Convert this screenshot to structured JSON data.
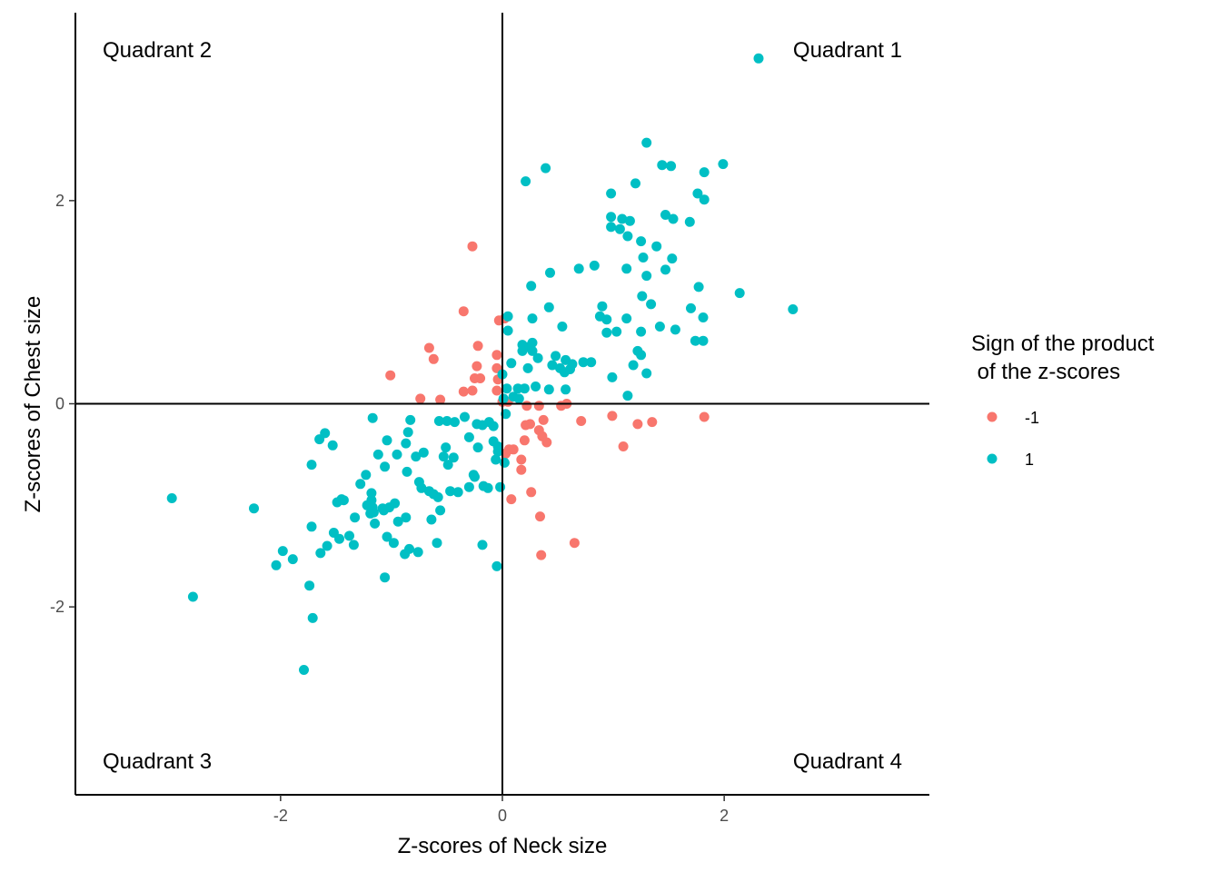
{
  "chart_data": {
    "type": "scatter",
    "xlabel": "Z-scores of Neck size",
    "ylabel": "Z-scores of Chest size",
    "xlim": [
      -3.85,
      3.85
    ],
    "ylim": [
      -3.85,
      3.85
    ],
    "x_ticks": [
      -2,
      0,
      2
    ],
    "y_ticks": [
      -2,
      0,
      2
    ],
    "x_tick_labels": [
      "-2",
      "0",
      "2"
    ],
    "y_tick_labels": [
      "-2",
      "0",
      "2"
    ],
    "grid": false,
    "reference_lines": {
      "x": 0,
      "y": 0
    },
    "quadrant_labels": [
      "Quadrant 1",
      "Quadrant 2",
      "Quadrant 3",
      "Quadrant 4"
    ],
    "legend": {
      "title_lines": [
        "Sign of the product",
        " of the z-scores"
      ],
      "placement": "right",
      "entries": [
        {
          "label": "-1",
          "color": "#F8766D"
        },
        {
          "label": "1",
          "color": "#00BFC4"
        }
      ]
    },
    "series": [
      {
        "name": "-1",
        "color": "#F8766D",
        "points": [
          [
            -0.27,
            1.55
          ],
          [
            -0.35,
            0.91
          ],
          [
            -0.03,
            0.82
          ],
          [
            0.02,
            0.84
          ],
          [
            -0.66,
            0.55
          ],
          [
            -0.62,
            0.44
          ],
          [
            -0.22,
            0.57
          ],
          [
            -0.05,
            0.48
          ],
          [
            -0.23,
            0.37
          ],
          [
            -0.05,
            0.35
          ],
          [
            -0.2,
            0.25
          ],
          [
            -0.25,
            0.25
          ],
          [
            -0.04,
            0.24
          ],
          [
            -1.01,
            0.28
          ],
          [
            -0.74,
            0.05
          ],
          [
            -0.56,
            0.04
          ],
          [
            -0.35,
            0.12
          ],
          [
            -0.27,
            0.13
          ],
          [
            -0.05,
            0.13
          ],
          [
            0.0,
            0.02
          ],
          [
            0.05,
            0.02
          ],
          [
            0.22,
            -0.02
          ],
          [
            0.33,
            -0.02
          ],
          [
            0.53,
            -0.02
          ],
          [
            0.58,
            0.0
          ],
          [
            0.37,
            -0.16
          ],
          [
            0.25,
            -0.2
          ],
          [
            0.21,
            -0.21
          ],
          [
            0.33,
            -0.26
          ],
          [
            0.36,
            -0.32
          ],
          [
            0.2,
            -0.36
          ],
          [
            0.4,
            -0.38
          ],
          [
            0.06,
            -0.45
          ],
          [
            0.1,
            -0.45
          ],
          [
            0.03,
            -0.49
          ],
          [
            0.17,
            -0.55
          ],
          [
            0.17,
            -0.65
          ],
          [
            0.26,
            -0.87
          ],
          [
            0.08,
            -0.94
          ],
          [
            0.34,
            -1.11
          ],
          [
            0.35,
            -1.49
          ],
          [
            0.65,
            -1.37
          ],
          [
            0.99,
            -0.12
          ],
          [
            1.22,
            -0.2
          ],
          [
            1.35,
            -0.18
          ],
          [
            1.82,
            -0.13
          ],
          [
            1.09,
            -0.42
          ],
          [
            0.71,
            -0.17
          ]
        ]
      },
      {
        "name": "1",
        "color": "#00BFC4",
        "points": [
          [
            2.31,
            3.4
          ],
          [
            1.3,
            2.57
          ],
          [
            0.39,
            2.32
          ],
          [
            0.21,
            2.19
          ],
          [
            1.44,
            2.35
          ],
          [
            1.52,
            2.34
          ],
          [
            1.99,
            2.36
          ],
          [
            1.82,
            2.28
          ],
          [
            1.2,
            2.17
          ],
          [
            0.98,
            2.07
          ],
          [
            1.76,
            2.07
          ],
          [
            1.82,
            2.01
          ],
          [
            0.98,
            1.84
          ],
          [
            1.08,
            1.82
          ],
          [
            1.15,
            1.8
          ],
          [
            1.47,
            1.86
          ],
          [
            1.54,
            1.82
          ],
          [
            1.69,
            1.79
          ],
          [
            0.98,
            1.74
          ],
          [
            1.06,
            1.72
          ],
          [
            1.13,
            1.65
          ],
          [
            1.25,
            1.6
          ],
          [
            1.39,
            1.55
          ],
          [
            1.27,
            1.44
          ],
          [
            1.53,
            1.43
          ],
          [
            0.69,
            1.33
          ],
          [
            0.83,
            1.36
          ],
          [
            1.12,
            1.33
          ],
          [
            1.47,
            1.32
          ],
          [
            0.43,
            1.29
          ],
          [
            1.3,
            1.26
          ],
          [
            0.26,
            1.16
          ],
          [
            1.77,
            1.15
          ],
          [
            2.14,
            1.09
          ],
          [
            1.26,
            1.06
          ],
          [
            1.34,
            0.98
          ],
          [
            0.42,
            0.95
          ],
          [
            0.9,
            0.96
          ],
          [
            2.62,
            0.93
          ],
          [
            1.7,
            0.94
          ],
          [
            0.05,
            0.86
          ],
          [
            0.27,
            0.84
          ],
          [
            0.88,
            0.86
          ],
          [
            1.12,
            0.84
          ],
          [
            0.94,
            0.83
          ],
          [
            0.54,
            0.76
          ],
          [
            1.42,
            0.76
          ],
          [
            1.81,
            0.85
          ],
          [
            1.56,
            0.73
          ],
          [
            0.05,
            0.72
          ],
          [
            0.94,
            0.7
          ],
          [
            1.03,
            0.71
          ],
          [
            1.25,
            0.71
          ],
          [
            1.74,
            0.62
          ],
          [
            1.81,
            0.62
          ],
          [
            0.27,
            0.6
          ],
          [
            0.24,
            0.56
          ],
          [
            0.18,
            0.58
          ],
          [
            0.18,
            0.52
          ],
          [
            0.27,
            0.52
          ],
          [
            0.48,
            0.47
          ],
          [
            0.32,
            0.45
          ],
          [
            0.57,
            0.43
          ],
          [
            0.73,
            0.41
          ],
          [
            0.8,
            0.41
          ],
          [
            1.22,
            0.52
          ],
          [
            1.25,
            0.48
          ],
          [
            0.08,
            0.4
          ],
          [
            0.45,
            0.38
          ],
          [
            0.23,
            0.35
          ],
          [
            0.52,
            0.35
          ],
          [
            0.56,
            0.31
          ],
          [
            0.61,
            0.34
          ],
          [
            0.63,
            0.39
          ],
          [
            1.18,
            0.38
          ],
          [
            1.3,
            0.3
          ],
          [
            0.0,
            0.29
          ],
          [
            0.04,
            0.15
          ],
          [
            0.14,
            0.15
          ],
          [
            0.2,
            0.15
          ],
          [
            0.3,
            0.17
          ],
          [
            0.42,
            0.14
          ],
          [
            0.57,
            0.14
          ],
          [
            0.99,
            0.26
          ],
          [
            1.13,
            0.08
          ],
          [
            0.15,
            0.05
          ],
          [
            0.1,
            0.07
          ],
          [
            0.01,
            0.05
          ],
          [
            -0.08,
            -0.22
          ],
          [
            -0.12,
            -0.18
          ],
          [
            -0.18,
            -0.21
          ],
          [
            -0.23,
            -0.2
          ],
          [
            -0.34,
            -0.13
          ],
          [
            -0.43,
            -0.18
          ],
          [
            -0.5,
            -0.17
          ],
          [
            -0.57,
            -0.17
          ],
          [
            -0.83,
            -0.16
          ],
          [
            -0.85,
            -0.28
          ],
          [
            -1.17,
            -0.14
          ],
          [
            -1.6,
            -0.29
          ],
          [
            -1.65,
            -0.35
          ],
          [
            -1.53,
            -0.41
          ],
          [
            -1.04,
            -0.36
          ],
          [
            -0.87,
            -0.39
          ],
          [
            -0.51,
            -0.43
          ],
          [
            -0.53,
            -0.52
          ],
          [
            -0.44,
            -0.53
          ],
          [
            -0.22,
            -0.43
          ],
          [
            -0.04,
            -0.42
          ],
          [
            -0.04,
            -0.47
          ],
          [
            -0.08,
            -0.37
          ],
          [
            -0.3,
            -0.33
          ],
          [
            -0.06,
            -0.55
          ],
          [
            0.02,
            -0.58
          ],
          [
            -0.26,
            -0.7
          ],
          [
            -0.3,
            -0.82
          ],
          [
            -0.49,
            -0.6
          ],
          [
            -0.71,
            -0.48
          ],
          [
            -0.78,
            -0.52
          ],
          [
            -0.86,
            -0.67
          ],
          [
            -0.95,
            -0.5
          ],
          [
            -1.06,
            -0.62
          ],
          [
            -1.12,
            -0.5
          ],
          [
            -1.23,
            -0.7
          ],
          [
            -1.28,
            -0.79
          ],
          [
            -1.18,
            -0.88
          ],
          [
            -1.18,
            -0.95
          ],
          [
            -1.45,
            -0.94
          ],
          [
            -1.43,
            -0.95
          ],
          [
            -1.49,
            -0.97
          ],
          [
            -1.22,
            -1.0
          ],
          [
            -1.17,
            -1.02
          ],
          [
            -1.08,
            -1.03
          ],
          [
            -1.02,
            -1.02
          ],
          [
            -0.97,
            -0.98
          ],
          [
            -0.75,
            -0.77
          ],
          [
            -0.73,
            -0.83
          ],
          [
            -0.66,
            -0.86
          ],
          [
            -0.58,
            -0.92
          ],
          [
            -0.62,
            -0.89
          ],
          [
            -0.47,
            -0.86
          ],
          [
            -0.4,
            -0.87
          ],
          [
            -0.25,
            -0.72
          ],
          [
            -0.17,
            -0.81
          ],
          [
            -0.13,
            -0.83
          ],
          [
            -0.02,
            -0.82
          ],
          [
            -0.56,
            -1.05
          ],
          [
            -0.64,
            -1.14
          ],
          [
            -0.87,
            -1.12
          ],
          [
            -0.94,
            -1.16
          ],
          [
            -1.07,
            -1.05
          ],
          [
            -1.16,
            -1.07
          ],
          [
            -1.19,
            -1.08
          ],
          [
            -1.15,
            -1.18
          ],
          [
            -1.33,
            -1.12
          ],
          [
            -1.38,
            -1.3
          ],
          [
            -1.52,
            -1.27
          ],
          [
            -1.47,
            -1.33
          ],
          [
            -1.58,
            -1.4
          ],
          [
            -1.64,
            -1.47
          ],
          [
            -1.72,
            -1.21
          ],
          [
            -1.04,
            -1.31
          ],
          [
            -0.98,
            -1.37
          ],
          [
            -0.88,
            -1.48
          ],
          [
            -0.84,
            -1.43
          ],
          [
            -0.76,
            -1.46
          ],
          [
            -0.59,
            -1.37
          ],
          [
            -1.34,
            -1.39
          ],
          [
            -1.06,
            -1.71
          ],
          [
            -1.72,
            -0.6
          ],
          [
            -1.98,
            -1.45
          ],
          [
            -1.89,
            -1.53
          ],
          [
            -2.04,
            -1.59
          ],
          [
            -2.24,
            -1.03
          ],
          [
            -2.98,
            -0.93
          ],
          [
            -2.79,
            -1.9
          ],
          [
            -1.74,
            -1.79
          ],
          [
            -1.71,
            -2.11
          ],
          [
            -1.79,
            -2.62
          ],
          [
            -0.18,
            -1.39
          ],
          [
            -0.05,
            -1.6
          ],
          [
            0.03,
            -0.1
          ]
        ]
      }
    ]
  }
}
